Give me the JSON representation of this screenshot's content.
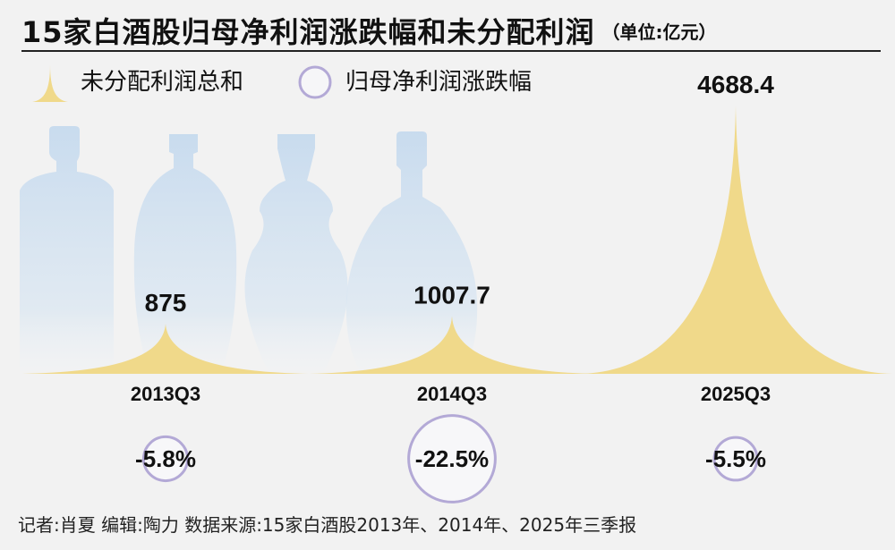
{
  "header": {
    "title": "15家白酒股归母净利润涨跌幅和未分配利润",
    "unit": "（单位:亿元）"
  },
  "legend": [
    {
      "label": "未分配利润总和",
      "icon": "peak-icon",
      "color": "#f0d98a"
    },
    {
      "label": "归母净利润涨跌幅",
      "icon": "circle-icon",
      "color": "#b3a9d6"
    }
  ],
  "chart_data": {
    "type": "area",
    "categories": [
      "2013Q3",
      "2014Q3",
      "2025Q3"
    ],
    "series": [
      {
        "name": "未分配利润总和",
        "values": [
          875,
          1007.7,
          4688.4
        ],
        "labels": [
          "875",
          "1007.7",
          "4688.4"
        ]
      },
      {
        "name": "归母净利润涨跌幅",
        "values": [
          -5.8,
          -22.5,
          -5.5
        ],
        "labels": [
          "-5.8%",
          "-22.5%",
          "-5.5%"
        ]
      }
    ],
    "colors": {
      "peak": "#f0d98a",
      "circle": "#b3a9d6",
      "bottle": "#c9dcef"
    }
  },
  "footer": {
    "text": "记者:肖夏  编辑:陶力  数据来源:15家白酒股2013年、2014年、2025年三季报"
  }
}
